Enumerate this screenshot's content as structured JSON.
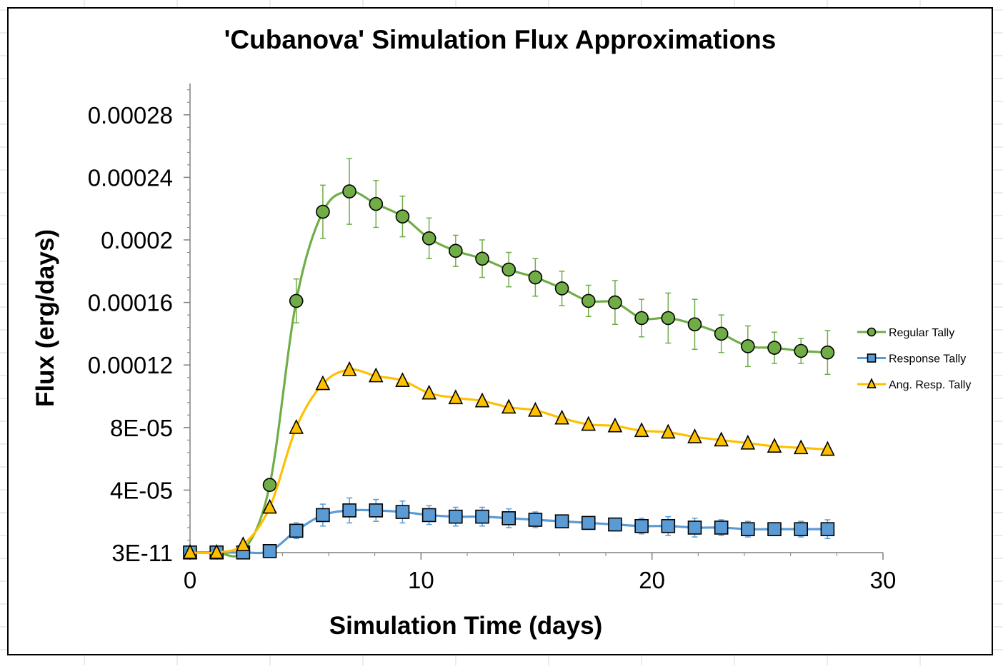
{
  "chart_data": {
    "type": "scatter",
    "title": "'Cubanova' Simulation Flux Approximations",
    "xlabel": "Simulation Time (days)",
    "ylabel": "Flux (erg/days)",
    "xlim": [
      0,
      30
    ],
    "ylim": [
      0,
      0.0003
    ],
    "x_ticks": [
      {
        "value": 0,
        "label": "0"
      },
      {
        "value": 10,
        "label": "10"
      },
      {
        "value": 20,
        "label": "20"
      },
      {
        "value": 30,
        "label": "30"
      }
    ],
    "y_ticks": [
      {
        "value": 0,
        "label": "3E-11"
      },
      {
        "value": 4e-05,
        "label": "4E-05"
      },
      {
        "value": 8e-05,
        "label": "8E-05"
      },
      {
        "value": 0.00012,
        "label": "0.00012"
      },
      {
        "value": 0.00016,
        "label": "0.00016"
      },
      {
        "value": 0.0002,
        "label": "0.0002"
      },
      {
        "value": 0.00024,
        "label": "0.00024"
      },
      {
        "value": 0.00028,
        "label": "0.00028"
      }
    ],
    "grid": false,
    "smooth_lines": true,
    "legend_position": "right",
    "x": [
      0,
      1.15,
      2.3,
      3.45,
      4.6,
      5.75,
      6.9,
      8.05,
      9.2,
      10.35,
      11.5,
      12.65,
      13.8,
      14.95,
      16.1,
      17.25,
      18.4,
      19.55,
      20.7,
      21.85,
      23.0,
      24.15,
      25.3,
      26.45,
      27.6
    ],
    "series": [
      {
        "name": "Regular Tally",
        "marker": "circle",
        "line_color": "#70ad47",
        "marker_color": "#70ad47",
        "error_color": "#70ad47",
        "values": [
          1e-07,
          1e-07,
          1e-06,
          4.33e-05,
          0.000161,
          0.000218,
          0.000231,
          0.000223,
          0.000215,
          0.000201,
          0.000193,
          0.000188,
          0.000181,
          0.000176,
          0.000169,
          0.000161,
          0.00016,
          0.00015,
          0.00015,
          0.000146,
          0.00014,
          0.000132,
          0.000131,
          0.000129,
          0.000128
        ],
        "errors": [
          0,
          0,
          0,
          4e-06,
          1.4e-05,
          1.7e-05,
          2.1e-05,
          1.5e-05,
          1.3e-05,
          1.3e-05,
          1e-05,
          1.2e-05,
          1.1e-05,
          1.2e-05,
          1.1e-05,
          1e-05,
          1.4e-05,
          1.2e-05,
          1.6e-05,
          1.6e-05,
          1.2e-05,
          1.3e-05,
          1e-05,
          8e-06,
          1.4e-05
        ]
      },
      {
        "name": "Response Tally",
        "marker": "square",
        "line_color": "#5b9bd5",
        "marker_color": "#5b9bd5",
        "error_color": "#5b9bd5",
        "values": [
          1e-07,
          1e-07,
          1e-07,
          1e-06,
          1.4e-05,
          2.4e-05,
          2.7e-05,
          2.7e-05,
          2.6e-05,
          2.4e-05,
          2.3e-05,
          2.3e-05,
          2.2e-05,
          2.1e-05,
          2e-05,
          1.9e-05,
          1.8e-05,
          1.7e-05,
          1.7e-05,
          1.6e-05,
          1.6e-05,
          1.5e-05,
          1.5e-05,
          1.5e-05,
          1.5e-05
        ],
        "errors": [
          0,
          0,
          0,
          0,
          5e-06,
          7e-06,
          8e-06,
          7e-06,
          7e-06,
          6e-06,
          6e-06,
          6e-06,
          6e-06,
          5e-06,
          4e-06,
          4e-06,
          4e-06,
          5e-06,
          6e-06,
          6e-06,
          5e-06,
          5e-06,
          4e-06,
          5e-06,
          6e-06
        ]
      },
      {
        "name": "Ang. Resp. Tally",
        "marker": "triangle",
        "line_color": "#ffc000",
        "marker_color": "#ffc000",
        "error_color": "#ffc000",
        "values": [
          1e-07,
          1e-07,
          5e-06,
          2.9e-05,
          8e-05,
          0.000108,
          0.000117,
          0.000113,
          0.00011,
          0.000102,
          9.9e-05,
          9.7e-05,
          9.3e-05,
          9.1e-05,
          8.6e-05,
          8.2e-05,
          8.1e-05,
          7.8e-05,
          7.7e-05,
          7.4e-05,
          7.2e-05,
          7e-05,
          6.8e-05,
          6.7e-05,
          6.6e-05
        ],
        "errors": []
      }
    ]
  }
}
